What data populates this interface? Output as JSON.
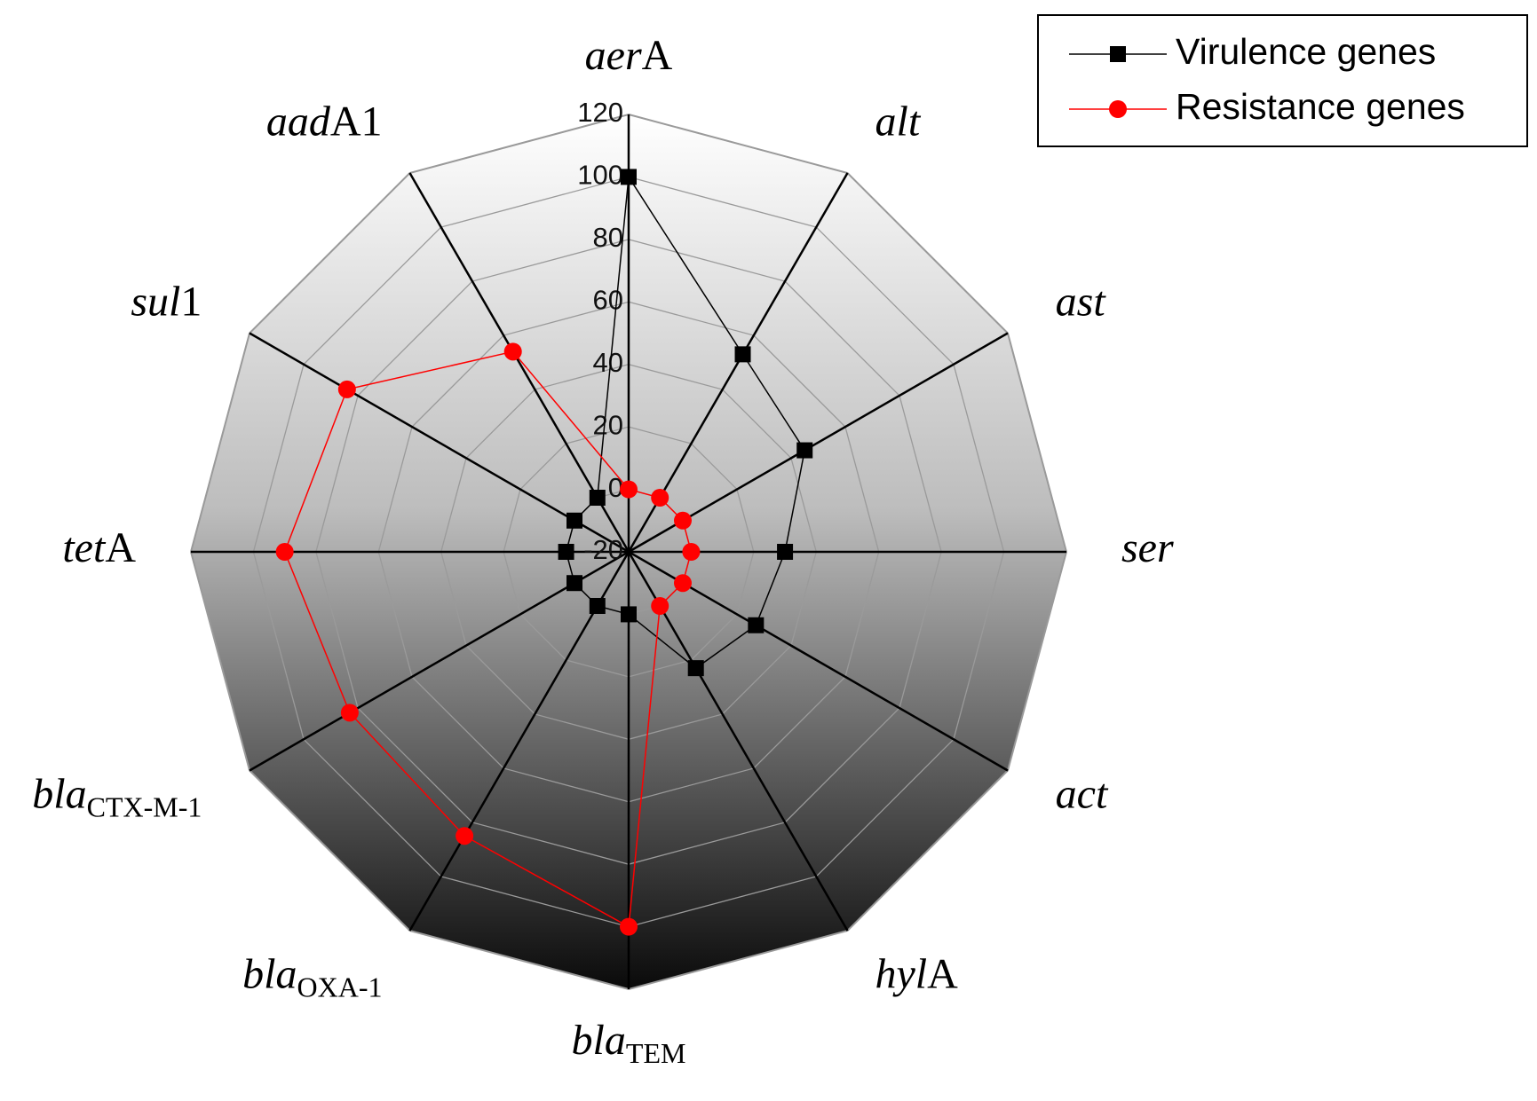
{
  "chart_data": {
    "type": "radar",
    "categories": [
      {
        "italic": "aer",
        "text": "A"
      },
      {
        "italic": "alt"
      },
      {
        "italic": "ast"
      },
      {
        "italic": "ser"
      },
      {
        "italic": "act"
      },
      {
        "italic": "hyl",
        "text": "A"
      },
      {
        "italic": "bla",
        "sub": "TEM"
      },
      {
        "italic": "bla",
        "sub": "OXA-1"
      },
      {
        "italic": "bla",
        "sub": "CTX-M-1"
      },
      {
        "italic": "tet",
        "text": "A"
      },
      {
        "italic": "sul",
        "text": "1"
      },
      {
        "italic": "aad",
        "text": "A1"
      }
    ],
    "series": [
      {
        "name": "Virulence genes",
        "color": "#000000",
        "marker": "square",
        "values": [
          100,
          53,
          45,
          30,
          27,
          23,
          0,
          0,
          0,
          0,
          0,
          0
        ]
      },
      {
        "name": "Resistance genes",
        "color": "#ff0000",
        "marker": "circle",
        "values": [
          0,
          0,
          0,
          0,
          0,
          0,
          100,
          85,
          83,
          90,
          84,
          54
        ]
      }
    ],
    "rlim": [
      -20,
      120
    ],
    "rticks": [
      -20,
      0,
      20,
      40,
      60,
      80,
      100,
      120
    ],
    "grid": true,
    "legend": "top-right"
  }
}
